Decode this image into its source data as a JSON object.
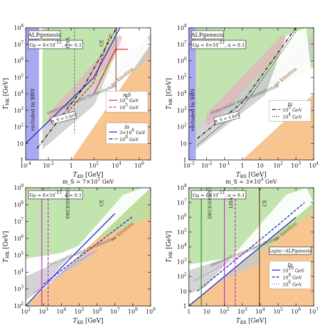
{
  "colors": {
    "bbn": "#a9a9f2",
    "no_kination": "#f8c48f",
    "green": "#b7e1a2",
    "gray": "#c9c9c9",
    "pink": "#e9a7c3",
    "grid_white": "#ffffff",
    "red": "#e0242b",
    "blue": "#1c2ad0",
    "magenta": "#c23ac7",
    "dark_green": "#2d9a2d",
    "brown": "#7a4b1a",
    "black": "#111111"
  },
  "chart_data": [
    {
      "type": "area",
      "panel": "top-left",
      "title": "",
      "xlabel": "T_KR [GeV]",
      "ylabel": "T_MK [GeV]",
      "xlog": true,
      "ylog": true,
      "xlim": [
        0.0001,
        10000000
      ],
      "ylim": [
        1,
        100000000
      ],
      "x_ticks": [
        "10^{-4}",
        "10^{-2}",
        "1",
        "10^{2}",
        "10^{4}",
        "10^{6}"
      ],
      "x_tick_values": [
        0.0001,
        0.01,
        1,
        100,
        10000,
        1000000
      ],
      "y_ticks": [
        "1",
        "10",
        "10^{2}",
        "10^{3}",
        "10^{4}",
        "10^{5}",
        "10^{6}",
        "10^{7}",
        "10^{8}"
      ],
      "y_tick_values": [
        1,
        10,
        100,
        1000,
        10000,
        100000,
        1000000,
        10000000,
        100000000
      ],
      "box_title": "ALPgenesis",
      "param_text": "Gμ = 6×10^{-11}, α = 0.1",
      "bbn_label": "excluded by BBN",
      "bbn_xmax": 0.0015,
      "region_labels": [
        "no kination",
        "unsuccessful saxion thermalization"
      ],
      "vertical_labels": [
        "LISA",
        "CE"
      ],
      "lisa_x": 2,
      "ce_x": 9000,
      "green_region": {
        "xmin": 0.003,
        "xmax": 10000,
        "ymin_at_xmax": 20000
      },
      "gray_band": {
        "slope_y_per_x": 2.6,
        "thickness": 4
      },
      "mask_label": "m_S = 5 keV",
      "legend_mass": {
        "title": "m_S",
        "entries": [
          "10^6 GeV",
          "10^5 GeV"
        ]
      },
      "legend_fa": {
        "title": "f_a",
        "entries": [
          "3×10^6 GeV",
          "10^8 GeV"
        ]
      },
      "series": [
        {
          "name": "m_S = 10^6 GeV",
          "style": "red-solid",
          "x": [
            100,
            8000,
            100000
          ],
          "y": [
            10000,
            5000000,
            5000000
          ]
        },
        {
          "name": "m_S = 10^5 GeV",
          "style": "red-dashed",
          "x": [
            0.5,
            100,
            3000
          ],
          "y": [
            800,
            50000,
            50000000
          ]
        },
        {
          "name": "f_a = 3×10^6 GeV",
          "style": "blue-solid",
          "x": [
            0.0001,
            100,
            20000
          ],
          "y": [
            10,
            100000,
            100000000
          ]
        },
        {
          "name": "f_a = 10^8 GeV",
          "style": "black-dashdot",
          "x": [
            0.001,
            10,
            10000
          ],
          "y": [
            5,
            20000,
            100000000
          ]
        }
      ]
    },
    {
      "type": "area",
      "panel": "top-right",
      "title": "",
      "xlabel": "T_KR [GeV]",
      "ylabel": "T_MK [GeV]",
      "xlog": true,
      "ylog": true,
      "xlim": [
        0.001,
        10000
      ],
      "ylim": [
        1,
        100000000
      ],
      "x_ticks": [
        "10^{-3}",
        "10^{-2}",
        "10^{-1}",
        "1",
        "10",
        "10^{2}",
        "10^{3}",
        "10^{4}"
      ],
      "x_tick_values": [
        0.001,
        0.01,
        0.1,
        1,
        10,
        100,
        1000,
        10000
      ],
      "y_ticks": [
        "1",
        "10",
        "10^{2}",
        "10^{3}",
        "10^{4}",
        "10^{5}",
        "10^{6}",
        "10^{7}",
        "10^{8}"
      ],
      "y_tick_values": [
        1,
        10,
        100,
        1000,
        10000,
        100000,
        1000000,
        10000000,
        100000000
      ],
      "box_title": "ALPgenesis",
      "param_text": "Gμ = 6×10^{-11}, α = 0.1",
      "bbn_label": "excluded by BBN",
      "bbn_xmax": 0.0025,
      "region_labels": [
        "no kination",
        "unsuccessful saxion thermalization"
      ],
      "mask_label": "m_S = 5 keV",
      "legend_fa": {
        "title": "f_a",
        "entries": [
          "10^5 GeV",
          "10^4 GeV"
        ]
      },
      "series": [
        {
          "name": "f_a = 10^5 GeV",
          "style": "black-dashdot",
          "x": [
            0.003,
            1,
            1000
          ],
          "y": [
            20,
            3000,
            100000000
          ]
        },
        {
          "name": "f_a = 10^4 GeV",
          "style": "black-dotted",
          "x": [
            0.003,
            1,
            1000
          ],
          "y": [
            8,
            1500,
            60000000
          ]
        }
      ]
    },
    {
      "type": "area",
      "panel": "bottom-left",
      "title": "m_S = 7×10^5 GeV",
      "xlabel": "T_KR [GeV]",
      "ylabel": "T_MK [GeV]",
      "xlog": true,
      "ylog": true,
      "xlim": [
        100,
        1000000000
      ],
      "ylim": [
        100,
        1000000000
      ],
      "x_ticks": [
        "10^2",
        "10^3",
        "10^4",
        "10^5",
        "10^6",
        "10^7",
        "10^8",
        "10^9"
      ],
      "x_tick_values": [
        100,
        1000,
        10000,
        100000,
        1000000,
        10000000,
        100000000,
        1000000000
      ],
      "y_ticks": [
        "10^2",
        "10^3",
        "10^4",
        "10^5",
        "10^6",
        "10^7",
        "10^8",
        "10^9"
      ],
      "y_tick_values": [
        100,
        1000,
        10000,
        100000,
        1000000,
        10000000,
        100000000,
        1000000000
      ],
      "param_text": "Gμ = 6×10^{-11}, α = 0.1",
      "region_labels": [
        "no kination",
        "unsuccessful saxion thermalization"
      ],
      "vertical_labels": [
        "DECIGO/BBO",
        "CE"
      ],
      "legend_fa": {
        "title": "",
        "entries": []
      },
      "series": [
        {
          "name": "",
          "style": "blue-solid",
          "x": [
            100,
            20000,
            10000000
          ],
          "y": [
            100,
            40000,
            30000000
          ]
        },
        {
          "name": "",
          "style": "blue-dashed",
          "x": [
            1000,
            1000000,
            100000000
          ],
          "y": [
            2000,
            500000,
            20000000
          ]
        },
        {
          "name": "",
          "style": "magenta-dotted",
          "x": [
            300,
            50000,
            1000000
          ],
          "y": [
            600,
            30000,
            200000
          ]
        },
        {
          "name": "",
          "style": "magenta-solid",
          "x": [
            800,
            800
          ],
          "y": [
            100,
            1000000000
          ]
        },
        {
          "name": "",
          "style": "magenta-dashed",
          "x": [
            1800,
            1800
          ],
          "y": [
            100,
            1000000000
          ]
        }
      ]
    },
    {
      "type": "area",
      "panel": "bottom-right",
      "title": "m_S = 3×10^4 GeV",
      "xlabel": "T_KR [GeV]",
      "ylabel": "T_MK [GeV]",
      "xlog": true,
      "ylog": true,
      "xlim": [
        1,
        10000000
      ],
      "ylim": [
        1,
        100000000
      ],
      "x_ticks": [
        "1",
        "10",
        "10^2",
        "10^3",
        "10^4",
        "10^5",
        "10^6",
        "10^7"
      ],
      "x_tick_values": [
        1,
        10,
        100,
        1000,
        10000,
        100000,
        1000000,
        10000000
      ],
      "y_ticks": [
        "1",
        "10",
        "10^2",
        "10^3",
        "10^4",
        "10^5",
        "10^6",
        "10^7",
        "10^8"
      ],
      "y_tick_values": [
        1,
        10,
        100,
        1000,
        10000,
        100000,
        1000000,
        10000000,
        100000000
      ],
      "param_text": "Gμ = 6×10^{-11}, α = 0.1",
      "region_labels": [
        "no kination",
        "unsuccessful saxion thermalization"
      ],
      "vertical_labels": [
        "LISA",
        "CE",
        "DECIGO/BBO"
      ],
      "legend_fa": {
        "title": "f_a",
        "entries": [
          "10^{10} GeV",
          "10^8 GeV",
          "10^6 GeV"
        ]
      },
      "legend_box": "Lepto−ALPgenesis",
      "series": [
        {
          "name": "f_a = 10^{10} GeV",
          "style": "blue-solid",
          "x": [
            1,
            100000,
            1000000
          ],
          "y": [
            1,
            100000,
            1000000
          ]
        },
        {
          "name": "f_a = 10^8 GeV",
          "style": "blue-dashed",
          "x": [
            3,
            100000,
            3000000
          ],
          "y": [
            10,
            300000,
            10000000
          ]
        },
        {
          "name": "f_a = 10^6 GeV",
          "style": "magenta-dotted",
          "x": [
            2,
            1000,
            30000
          ],
          "y": [
            50,
            3000,
            30000
          ]
        },
        {
          "name": "",
          "style": "green-solid",
          "x": [
            5,
            5
          ],
          "y": [
            1,
            100000000
          ]
        },
        {
          "name": "",
          "style": "magenta-solid",
          "x": [
            100,
            100
          ],
          "y": [
            1,
            100000000
          ]
        },
        {
          "name": "",
          "style": "magenta-dashed",
          "x": [
            400,
            400
          ],
          "y": [
            1,
            100000000
          ]
        },
        {
          "name": "",
          "style": "brown-solid",
          "x": [
            9000,
            9000
          ],
          "y": [
            1,
            100000000
          ]
        }
      ]
    }
  ]
}
